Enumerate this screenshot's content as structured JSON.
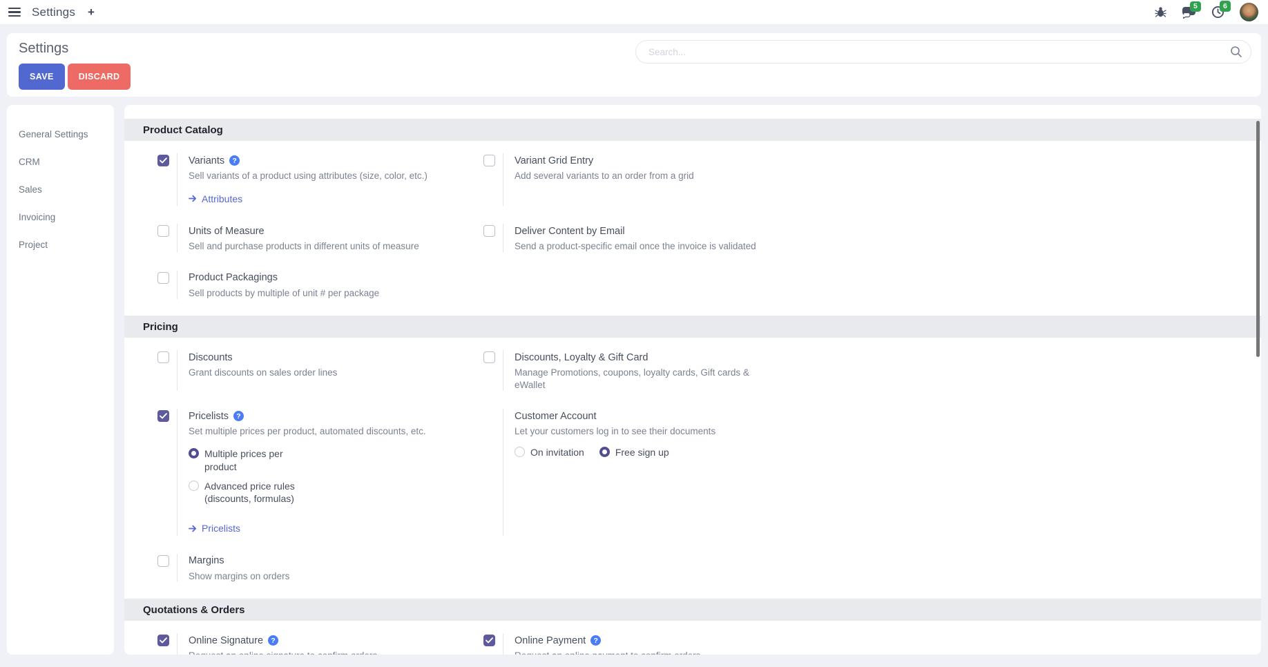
{
  "navbar": {
    "app_title": "Settings",
    "plus_label": "+",
    "messages_badge": "5",
    "activities_badge": "6",
    "icons": [
      "hamburger-icon",
      "plus-icon",
      "bug-icon",
      "chat-icon",
      "clock-icon",
      "user-avatar"
    ]
  },
  "header": {
    "title": "Settings",
    "save_label": "SAVE",
    "discard_label": "DISCARD",
    "search_placeholder": "Search...",
    "search_icon": "magnifier-icon"
  },
  "sidebar": {
    "items": [
      {
        "label": "General Settings"
      },
      {
        "label": "CRM"
      },
      {
        "label": "Sales"
      },
      {
        "label": "Invoicing"
      },
      {
        "label": "Project"
      }
    ]
  },
  "sections": [
    {
      "title": "Product Catalog",
      "rows": [
        {
          "left": {
            "label": "Variants",
            "help": true,
            "checkbox": "checked",
            "desc": "Sell variants of a product using attributes (size, color, etc.)",
            "link": "Attributes"
          },
          "right": {
            "label": "Variant Grid Entry",
            "checkbox": "unchecked",
            "desc": "Add several variants to an order from a grid"
          }
        },
        {
          "left": {
            "label": "Units of Measure",
            "checkbox": "unchecked",
            "desc": "Sell and purchase products in different units of measure"
          },
          "right": {
            "label": "Deliver Content by Email",
            "checkbox": "unchecked",
            "desc": "Send a product-specific email once the invoice is validated"
          }
        },
        {
          "left": {
            "label": "Product Packagings",
            "checkbox": "unchecked",
            "desc": "Sell products by multiple of unit # per package"
          },
          "right": null
        }
      ]
    },
    {
      "title": "Pricing",
      "rows": [
        {
          "left": {
            "label": "Discounts",
            "checkbox": "unchecked",
            "desc": "Grant discounts on sales order lines"
          },
          "right": {
            "label": "Discounts, Loyalty & Gift Card",
            "checkbox": "unchecked",
            "desc": "Manage Promotions, coupons, loyalty cards, Gift cards &\neWallet"
          }
        },
        {
          "left": {
            "label": "Pricelists",
            "help": true,
            "checkbox": "checked",
            "desc": "Set multiple prices per product, automated discounts, etc.",
            "radios": {
              "layout": "stack",
              "options": [
                {
                  "label": "Multiple prices per\nproduct",
                  "selected": true
                },
                {
                  "label": "Advanced price rules\n(discounts, formulas)",
                  "selected": false
                }
              ]
            },
            "link": "Pricelists"
          },
          "right": {
            "label": "Customer Account",
            "checkbox": "none",
            "desc": "Let your customers log in to see their documents",
            "radios": {
              "layout": "inline",
              "options": [
                {
                  "label": "On invitation",
                  "selected": false
                },
                {
                  "label": "Free sign up",
                  "selected": true
                }
              ]
            }
          }
        },
        {
          "left": {
            "label": "Margins",
            "checkbox": "unchecked",
            "desc": "Show margins on orders"
          },
          "right": null
        }
      ]
    },
    {
      "title": "Quotations & Orders",
      "rows": [
        {
          "left": {
            "label": "Online Signature",
            "help": true,
            "checkbox": "checked",
            "desc": "Request an online signature to confirm orders"
          },
          "right": {
            "label": "Online Payment",
            "help": true,
            "checkbox": "checked",
            "desc": "Request an online payment to confirm orders"
          }
        }
      ]
    }
  ],
  "colors": {
    "accent_purple": "#5e5a9d",
    "link_blue": "#5666d4",
    "save_button": "#5068d0",
    "discard_button": "#ee6a64",
    "badge_green": "#2ea24c",
    "help_blue": "#497cf6",
    "section_header_bg": "#e8eaed",
    "page_bg": "#f0f0f7"
  }
}
